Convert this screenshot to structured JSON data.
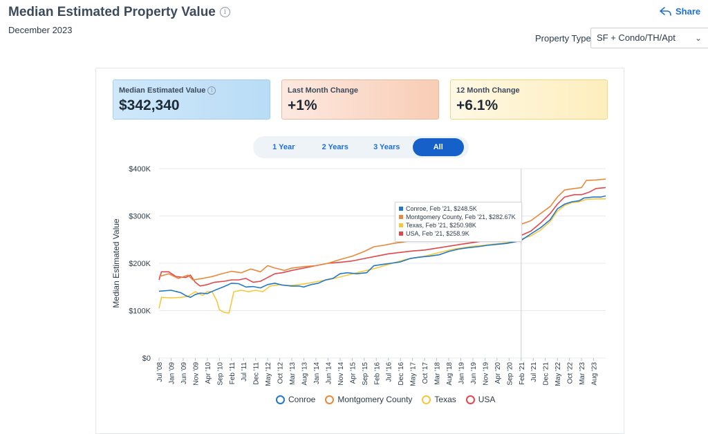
{
  "header": {
    "title": "Median Estimated Property Value",
    "subtitle": "December 2023",
    "share_label": "Share",
    "property_type_label": "Property Type",
    "property_type_value": "SF + Condo/TH/Apt"
  },
  "cards": [
    {
      "label": "Median Estimated Value",
      "value": "$342,340"
    },
    {
      "label": "Last Month Change",
      "value": "+1%"
    },
    {
      "label": "12 Month Change",
      "value": "+6.1%"
    }
  ],
  "range_tabs": [
    "1 Year",
    "2 Years",
    "3 Years",
    "All"
  ],
  "active_range": "All",
  "colors": {
    "conroe": "#1f78c8",
    "montgomery": "#e8893a",
    "texas": "#f5c83a",
    "usa": "#e2454a",
    "accent": "#1660c9"
  },
  "tooltip": {
    "date": "Feb '21",
    "lines": [
      {
        "series": "Conroe",
        "text": "Conroe, Feb '21, $248.5K"
      },
      {
        "series": "Montgomery County",
        "text": "Montgomery County, Feb '21, $282.67K"
      },
      {
        "series": "Texas",
        "text": "Texas, Feb '21, $250.98K"
      },
      {
        "series": "USA",
        "text": "USA, Feb '21, $258.9K"
      }
    ]
  },
  "chart_data": {
    "type": "line",
    "title": "Median Estimated Property Value",
    "ylabel": "Median Estimated Value",
    "xlabel": "",
    "ylim": [
      0,
      400000
    ],
    "y_ticks": [
      0,
      100000,
      200000,
      300000,
      400000
    ],
    "y_tick_labels": [
      "$0",
      "$100K",
      "$200K",
      "$300K",
      "$400K"
    ],
    "x_range_months": [
      0,
      185
    ],
    "x_tick_labels": [
      "Jul '08",
      "Jan '09",
      "Jun '09",
      "Nov '09",
      "Apr '10",
      "Sep '10",
      "Feb '11",
      "Jul '11",
      "Dec '11",
      "May '12",
      "Oct '12",
      "Mar '13",
      "Aug '13",
      "Jan '14",
      "Jun '14",
      "Nov '14",
      "Apr '15",
      "Sep '15",
      "Feb '16",
      "Jul '16",
      "Dec '16",
      "May '17",
      "Oct '17",
      "Mar '18",
      "Aug '18",
      "Jan '19",
      "Jun '19",
      "Nov '19",
      "Apr '20",
      "Sep '20",
      "Feb '21",
      "Jul '21",
      "Dec '21",
      "May '22",
      "Oct '22",
      "Mar '23",
      "Aug '23"
    ],
    "grid": true,
    "legend_position": "bottom",
    "x_note": "x values are months since Jul '08",
    "series": [
      {
        "name": "Conroe",
        "color": "#1f78c8",
        "points": [
          [
            0,
            141000
          ],
          [
            5,
            143000
          ],
          [
            9,
            138000
          ],
          [
            11,
            132000
          ],
          [
            13,
            128000
          ],
          [
            15,
            134000
          ],
          [
            17,
            137000
          ],
          [
            20,
            136000
          ],
          [
            24,
            145000
          ],
          [
            27,
            151000
          ],
          [
            30,
            158000
          ],
          [
            33,
            157000
          ],
          [
            36,
            150000
          ],
          [
            39,
            151000
          ],
          [
            42,
            148000
          ],
          [
            45,
            155000
          ],
          [
            48,
            158000
          ],
          [
            51,
            154000
          ],
          [
            55,
            152000
          ],
          [
            58,
            152000
          ],
          [
            60,
            150000
          ],
          [
            63,
            155000
          ],
          [
            66,
            158000
          ],
          [
            69,
            165000
          ],
          [
            72,
            168000
          ],
          [
            75,
            178000
          ],
          [
            78,
            180000
          ],
          [
            82,
            178000
          ],
          [
            86,
            180000
          ],
          [
            89,
            195000
          ],
          [
            93,
            198000
          ],
          [
            96,
            200000
          ],
          [
            100,
            203000
          ],
          [
            104,
            210000
          ],
          [
            108,
            213000
          ],
          [
            112,
            215000
          ],
          [
            116,
            218000
          ],
          [
            120,
            225000
          ],
          [
            124,
            230000
          ],
          [
            128,
            233000
          ],
          [
            132,
            235000
          ],
          [
            136,
            238000
          ],
          [
            140,
            240000
          ],
          [
            144,
            242000
          ],
          [
            148,
            246000
          ],
          [
            150,
            248500
          ],
          [
            154,
            262000
          ],
          [
            158,
            275000
          ],
          [
            162,
            292000
          ],
          [
            165,
            315000
          ],
          [
            168,
            325000
          ],
          [
            171,
            330000
          ],
          [
            174,
            332000
          ],
          [
            176,
            338000
          ],
          [
            180,
            340000
          ],
          [
            183,
            340000
          ],
          [
            185,
            342340
          ]
        ]
      },
      {
        "name": "Montgomery County",
        "color": "#e8893a",
        "points": [
          [
            0,
            172000
          ],
          [
            4,
            178000
          ],
          [
            8,
            168000
          ],
          [
            12,
            175000
          ],
          [
            14,
            165000
          ],
          [
            18,
            168000
          ],
          [
            22,
            172000
          ],
          [
            26,
            178000
          ],
          [
            30,
            183000
          ],
          [
            34,
            180000
          ],
          [
            38,
            188000
          ],
          [
            42,
            182000
          ],
          [
            45,
            195000
          ],
          [
            48,
            190000
          ],
          [
            52,
            185000
          ],
          [
            55,
            190000
          ],
          [
            60,
            193000
          ],
          [
            65,
            195000
          ],
          [
            70,
            200000
          ],
          [
            75,
            208000
          ],
          [
            80,
            215000
          ],
          [
            85,
            225000
          ],
          [
            89,
            235000
          ],
          [
            93,
            238000
          ],
          [
            97,
            242000
          ],
          [
            101,
            245000
          ],
          [
            105,
            248000
          ],
          [
            110,
            252000
          ],
          [
            115,
            255000
          ],
          [
            120,
            258000
          ],
          [
            125,
            262000
          ],
          [
            130,
            265000
          ],
          [
            135,
            270000
          ],
          [
            140,
            273000
          ],
          [
            145,
            278000
          ],
          [
            150,
            282670
          ],
          [
            154,
            290000
          ],
          [
            158,
            305000
          ],
          [
            162,
            320000
          ],
          [
            165,
            340000
          ],
          [
            168,
            355000
          ],
          [
            172,
            358000
          ],
          [
            175,
            360000
          ],
          [
            177,
            375000
          ],
          [
            181,
            376000
          ],
          [
            185,
            378000
          ]
        ]
      },
      {
        "name": "Texas",
        "color": "#f5c83a",
        "points": [
          [
            0,
            105000
          ],
          [
            1,
            128000
          ],
          [
            5,
            127000
          ],
          [
            9,
            128000
          ],
          [
            12,
            130000
          ],
          [
            15,
            140000
          ],
          [
            18,
            132000
          ],
          [
            20,
            140000
          ],
          [
            22,
            140000
          ],
          [
            24,
            120000
          ],
          [
            25,
            102000
          ],
          [
            27,
            96000
          ],
          [
            29,
            95000
          ],
          [
            31,
            140000
          ],
          [
            34,
            143000
          ],
          [
            37,
            140000
          ],
          [
            40,
            143000
          ],
          [
            43,
            140000
          ],
          [
            46,
            152000
          ],
          [
            50,
            155000
          ],
          [
            54,
            153000
          ],
          [
            58,
            155000
          ],
          [
            62,
            158000
          ],
          [
            66,
            162000
          ],
          [
            70,
            165000
          ],
          [
            74,
            170000
          ],
          [
            78,
            175000
          ],
          [
            82,
            180000
          ],
          [
            86,
            185000
          ],
          [
            90,
            190000
          ],
          [
            94,
            196000
          ],
          [
            98,
            202000
          ],
          [
            102,
            208000
          ],
          [
            106,
            212000
          ],
          [
            110,
            215000
          ],
          [
            114,
            220000
          ],
          [
            118,
            225000
          ],
          [
            122,
            230000
          ],
          [
            126,
            233000
          ],
          [
            130,
            236000
          ],
          [
            134,
            238000
          ],
          [
            138,
            240000
          ],
          [
            142,
            242000
          ],
          [
            146,
            245000
          ],
          [
            150,
            250980
          ],
          [
            154,
            258000
          ],
          [
            158,
            270000
          ],
          [
            162,
            288000
          ],
          [
            165,
            310000
          ],
          [
            168,
            322000
          ],
          [
            171,
            328000
          ],
          [
            174,
            330000
          ],
          [
            177,
            335000
          ],
          [
            181,
            336000
          ],
          [
            185,
            336000
          ]
        ]
      },
      {
        "name": "USA",
        "color": "#e2454a",
        "points": [
          [
            0,
            165000
          ],
          [
            1,
            182000
          ],
          [
            4,
            182000
          ],
          [
            7,
            172000
          ],
          [
            11,
            170000
          ],
          [
            13,
            175000
          ],
          [
            15,
            160000
          ],
          [
            17,
            152000
          ],
          [
            20,
            155000
          ],
          [
            23,
            160000
          ],
          [
            27,
            162000
          ],
          [
            30,
            165000
          ],
          [
            33,
            165000
          ],
          [
            36,
            168000
          ],
          [
            39,
            160000
          ],
          [
            42,
            162000
          ],
          [
            45,
            170000
          ],
          [
            48,
            178000
          ],
          [
            51,
            180000
          ],
          [
            55,
            185000
          ],
          [
            60,
            190000
          ],
          [
            65,
            195000
          ],
          [
            70,
            200000
          ],
          [
            75,
            202000
          ],
          [
            80,
            205000
          ],
          [
            85,
            210000
          ],
          [
            90,
            215000
          ],
          [
            95,
            220000
          ],
          [
            100,
            223000
          ],
          [
            105,
            226000
          ],
          [
            110,
            228000
          ],
          [
            115,
            232000
          ],
          [
            120,
            236000
          ],
          [
            125,
            240000
          ],
          [
            130,
            244000
          ],
          [
            135,
            248000
          ],
          [
            140,
            252000
          ],
          [
            145,
            255000
          ],
          [
            150,
            258900
          ],
          [
            154,
            268000
          ],
          [
            158,
            285000
          ],
          [
            162,
            305000
          ],
          [
            165,
            325000
          ],
          [
            168,
            340000
          ],
          [
            172,
            345000
          ],
          [
            175,
            345000
          ],
          [
            178,
            350000
          ],
          [
            181,
            358000
          ],
          [
            185,
            360000
          ]
        ]
      }
    ]
  },
  "legend": [
    "Conroe",
    "Montgomery County",
    "Texas",
    "USA"
  ]
}
